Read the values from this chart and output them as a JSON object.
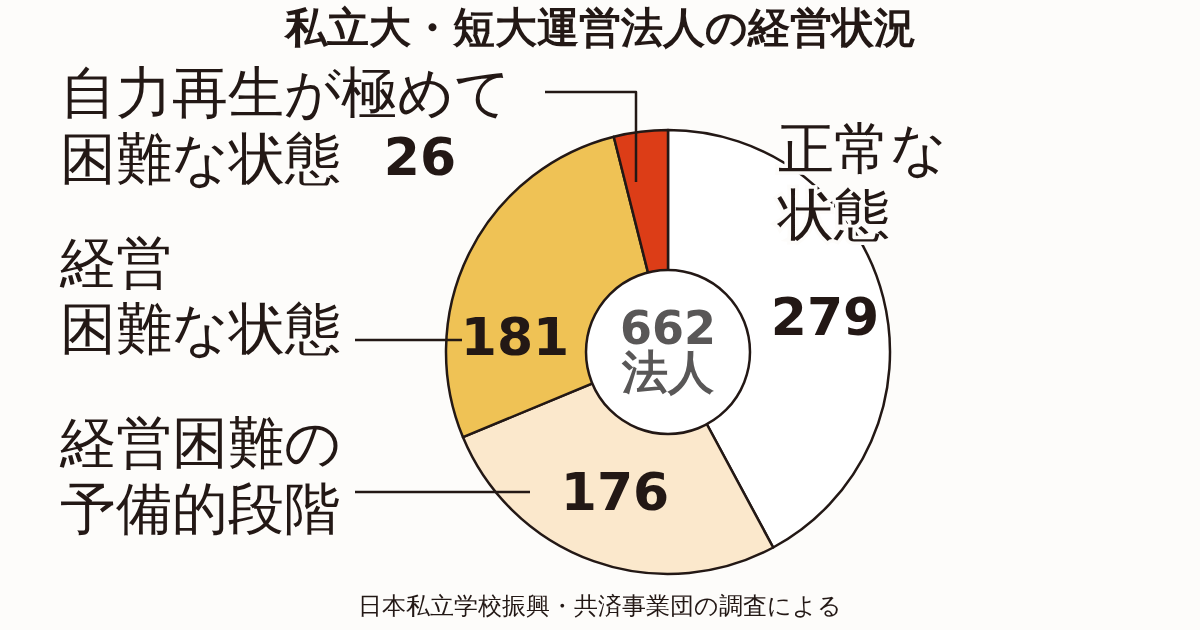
{
  "chart_data": {
    "type": "donut",
    "title": "私立大・短大運営法人の経営状況",
    "categories": [
      "正常な状態",
      "経営困難の予備的段階",
      "経営困難な状態",
      "自力再生が極めて困難な状態"
    ],
    "values": [
      279,
      176,
      181,
      26
    ],
    "colors": [
      "#ffffff",
      "#fbe8cc",
      "#efc255",
      "#dc3d17"
    ],
    "data_labels": true,
    "annotations": [
      "662\n法人",
      "日本私立学校振興・共済事業団の調査による"
    ]
  }
}
